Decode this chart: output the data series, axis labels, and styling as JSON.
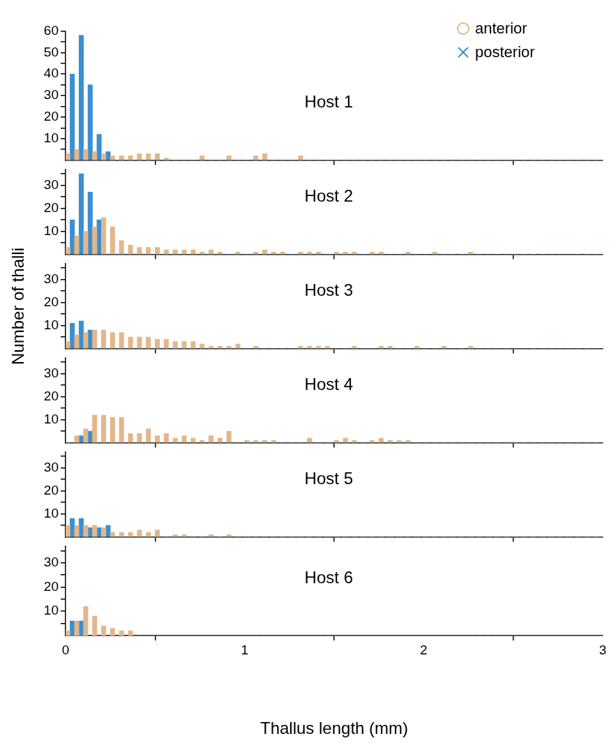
{
  "chart_data": [
    {
      "type": "histogram",
      "title": "Host 1",
      "legend": "top right",
      "tick_labels": "y",
      "xlim": [
        0,
        3
      ],
      "xticks": [
        0,
        1,
        2,
        3
      ],
      "ylim": [
        0,
        60
      ],
      "yticks": [
        {
          "value": 5,
          "label": null
        },
        10,
        {
          "value": 15,
          "label": null
        },
        20,
        {
          "value": 25,
          "label": null
        },
        30,
        {
          "value": 35,
          "label": null
        },
        40,
        {
          "value": 45,
          "label": null
        },
        50,
        {
          "value": 55,
          "label": null
        },
        60
      ],
      "bins": [
        0,
        0.05,
        0.1,
        0.15,
        0.2,
        0.25,
        0.3,
        0.35,
        0.4,
        0.45,
        0.5,
        0.55,
        0.6,
        0.65,
        0.7,
        0.75,
        0.8,
        0.85,
        0.9,
        0.95,
        1,
        1.05,
        1.1,
        1.15,
        1.2,
        1.25,
        1.3,
        1.35,
        1.4,
        1.45,
        1.5,
        1.55,
        1.6,
        1.65,
        1.7,
        1.75,
        1.8,
        1.85,
        1.9,
        1.95,
        2,
        2.05,
        2.1,
        2.15,
        2.2,
        2.25,
        2.3,
        2.35,
        2.4,
        2.45,
        2.5,
        2.55,
        2.6,
        2.65,
        2.7,
        2.75,
        2.8,
        2.85,
        2.9,
        2.95,
        3
      ],
      "series": [
        {
          "name": "anterior",
          "color": "#e3b78a",
          "marker": "circle",
          "values": [
            3,
            5,
            5,
            4,
            3,
            2,
            2,
            2,
            3,
            3,
            3,
            1,
            0,
            0,
            0,
            2,
            0,
            0,
            2,
            0,
            0,
            2,
            3,
            0,
            0,
            0,
            2,
            0,
            0,
            0,
            0,
            0,
            0,
            0,
            0,
            0,
            0,
            0,
            0,
            0,
            0,
            0,
            0,
            0,
            0,
            0,
            0,
            0,
            0,
            0,
            0,
            0,
            0,
            0,
            0,
            0,
            0,
            0,
            0,
            0
          ]
        },
        {
          "name": "posterior",
          "color": "#3a8fd3",
          "marker": "cross",
          "values": [
            40,
            58,
            35,
            12,
            4,
            0,
            0,
            0,
            0,
            0,
            0,
            0,
            0,
            0,
            0,
            0,
            0,
            0,
            0,
            0,
            0,
            0,
            0,
            0,
            0,
            0,
            0,
            0,
            0,
            0,
            0,
            0,
            0,
            0,
            0,
            0,
            0,
            0,
            0,
            0,
            0,
            0,
            0,
            0,
            0,
            0,
            0,
            0,
            0,
            0,
            0,
            0,
            0,
            0,
            0,
            0,
            0,
            0,
            0,
            0
          ]
        }
      ]
    },
    {
      "type": "histogram",
      "title": "Host 2",
      "tick_labels": "y",
      "xlim": [
        0,
        3
      ],
      "xticks": [
        0,
        1,
        2,
        3
      ],
      "ylim": [
        0,
        37
      ],
      "yticks": [
        {
          "value": 5,
          "label": null
        },
        10,
        {
          "value": 15,
          "label": null
        },
        20,
        {
          "value": 25,
          "label": null
        },
        30,
        {
          "value": 35,
          "label": null
        }
      ],
      "bins": [
        0,
        0.05,
        0.1,
        0.15,
        0.2,
        0.25,
        0.3,
        0.35,
        0.4,
        0.45,
        0.5,
        0.55,
        0.6,
        0.65,
        0.7,
        0.75,
        0.8,
        0.85,
        0.9,
        0.95,
        1,
        1.05,
        1.1,
        1.15,
        1.2,
        1.25,
        1.3,
        1.35,
        1.4,
        1.45,
        1.5,
        1.55,
        1.6,
        1.65,
        1.7,
        1.75,
        1.8,
        1.85,
        1.9,
        1.95,
        2,
        2.05,
        2.1,
        2.15,
        2.2,
        2.25,
        2.3,
        2.35,
        2.4,
        2.45,
        2.5,
        2.55,
        2.6,
        2.65,
        2.7,
        2.75,
        2.8,
        2.85,
        2.9,
        2.95,
        3
      ],
      "series": [
        {
          "color": "#e3b78a",
          "values": [
            3,
            8,
            10,
            12,
            16,
            12,
            6,
            4,
            3,
            3,
            3,
            2,
            2,
            2,
            2,
            1,
            2,
            1,
            0,
            1,
            0,
            1,
            2,
            1,
            1,
            0,
            1,
            1,
            1,
            0,
            1,
            1,
            1,
            0,
            1,
            1,
            0,
            0,
            1,
            0,
            0,
            1,
            0,
            0,
            0,
            1,
            0,
            0,
            0,
            0,
            0,
            0,
            0,
            0,
            0,
            0,
            0,
            0,
            0,
            0
          ]
        },
        {
          "color": "#3a8fd3",
          "values": [
            15,
            35,
            27,
            15,
            0,
            0,
            0,
            0,
            0,
            0,
            0,
            0,
            0,
            0,
            0,
            0,
            0,
            0,
            0,
            0,
            0,
            0,
            0,
            0,
            0,
            0,
            0,
            0,
            0,
            0,
            0,
            0,
            0,
            0,
            0,
            0,
            0,
            0,
            0,
            0,
            0,
            0,
            0,
            0,
            0,
            0,
            0,
            0,
            0,
            0,
            0,
            0,
            0,
            0,
            0,
            0,
            0,
            0,
            0,
            0
          ]
        }
      ]
    },
    {
      "type": "histogram",
      "title": "Host 3",
      "ylabel": "Number of thalli",
      "tick_labels": "y",
      "xlim": [
        0,
        3
      ],
      "xticks": [
        0,
        1,
        2,
        3
      ],
      "ylim": [
        0,
        37
      ],
      "yticks": [
        {
          "value": 5,
          "label": null
        },
        10,
        {
          "value": 15,
          "label": null
        },
        20,
        {
          "value": 25,
          "label": null
        },
        30,
        {
          "value": 35,
          "label": null
        }
      ],
      "bins": [
        0,
        0.05,
        0.1,
        0.15,
        0.2,
        0.25,
        0.3,
        0.35,
        0.4,
        0.45,
        0.5,
        0.55,
        0.6,
        0.65,
        0.7,
        0.75,
        0.8,
        0.85,
        0.9,
        0.95,
        1,
        1.05,
        1.1,
        1.15,
        1.2,
        1.25,
        1.3,
        1.35,
        1.4,
        1.45,
        1.5,
        1.55,
        1.6,
        1.65,
        1.7,
        1.75,
        1.8,
        1.85,
        1.9,
        1.95,
        2,
        2.05,
        2.1,
        2.15,
        2.2,
        2.25,
        2.3,
        2.35,
        2.4,
        2.45,
        2.5,
        2.55,
        2.6,
        2.65,
        2.7,
        2.75,
        2.8,
        2.85,
        2.9,
        2.95,
        3
      ],
      "series": [
        {
          "color": "#e3b78a",
          "values": [
            3,
            6,
            7,
            8,
            8,
            7,
            7,
            5,
            5,
            5,
            4,
            4,
            3,
            3,
            3,
            2,
            1,
            1,
            1,
            2,
            0,
            1,
            0,
            0,
            0,
            0,
            1,
            1,
            1,
            1,
            0,
            0,
            1,
            0,
            0,
            1,
            1,
            0,
            0,
            1,
            0,
            0,
            1,
            0,
            0,
            1,
            0,
            0,
            0,
            0,
            0,
            0,
            0,
            0,
            0,
            0,
            0,
            0,
            0,
            0
          ]
        },
        {
          "color": "#3a8fd3",
          "values": [
            11,
            12,
            8,
            0,
            0,
            0,
            0,
            0,
            0,
            0,
            0,
            0,
            0,
            0,
            0,
            0,
            0,
            0,
            0,
            0,
            0,
            0,
            0,
            0,
            0,
            0,
            0,
            0,
            0,
            0,
            0,
            0,
            0,
            0,
            0,
            0,
            0,
            0,
            0,
            0,
            0,
            0,
            0,
            0,
            0,
            0,
            0,
            0,
            0,
            0,
            0,
            0,
            0,
            0,
            0,
            0,
            0,
            0,
            0,
            0
          ]
        }
      ]
    },
    {
      "type": "histogram",
      "title": "Host 4",
      "tick_labels": "y",
      "xlim": [
        0,
        3
      ],
      "xticks": [
        0,
        1,
        2,
        3
      ],
      "ylim": [
        0,
        37
      ],
      "yticks": [
        {
          "value": 5,
          "label": null
        },
        10,
        {
          "value": 15,
          "label": null
        },
        20,
        {
          "value": 25,
          "label": null
        },
        30,
        {
          "value": 35,
          "label": null
        }
      ],
      "bins": [
        0,
        0.05,
        0.1,
        0.15,
        0.2,
        0.25,
        0.3,
        0.35,
        0.4,
        0.45,
        0.5,
        0.55,
        0.6,
        0.65,
        0.7,
        0.75,
        0.8,
        0.85,
        0.9,
        0.95,
        1,
        1.05,
        1.1,
        1.15,
        1.2,
        1.25,
        1.3,
        1.35,
        1.4,
        1.45,
        1.5,
        1.55,
        1.6,
        1.65,
        1.7,
        1.75,
        1.8,
        1.85,
        1.9,
        1.95,
        2,
        2.05,
        2.1,
        2.15,
        2.2,
        2.25,
        2.3,
        2.35,
        2.4,
        2.45,
        2.5,
        2.55,
        2.6,
        2.65,
        2.7,
        2.75,
        2.8,
        2.85,
        2.9,
        2.95,
        3
      ],
      "series": [
        {
          "color": "#e3b78a",
          "values": [
            0,
            3,
            6,
            12,
            12,
            11,
            11,
            4,
            4,
            6,
            3,
            4,
            2,
            3,
            2,
            1,
            3,
            2,
            5,
            0,
            1,
            1,
            1,
            1,
            0,
            0,
            0,
            2,
            0,
            0,
            1,
            2,
            1,
            0,
            1,
            2,
            1,
            1,
            1,
            0,
            0,
            0,
            0,
            0,
            0,
            0,
            0,
            0,
            0,
            0,
            0,
            0,
            0,
            0,
            0,
            0,
            0,
            0,
            0,
            0
          ]
        },
        {
          "color": "#3a8fd3",
          "values": [
            0,
            3,
            5,
            0,
            0,
            0,
            0,
            0,
            0,
            0,
            0,
            0,
            0,
            0,
            0,
            0,
            0,
            0,
            0,
            0,
            0,
            0,
            0,
            0,
            0,
            0,
            0,
            0,
            0,
            0,
            0,
            0,
            0,
            0,
            0,
            0,
            0,
            0,
            0,
            0,
            0,
            0,
            0,
            0,
            0,
            0,
            0,
            0,
            0,
            0,
            0,
            0,
            0,
            0,
            0,
            0,
            0,
            0,
            0,
            0
          ]
        }
      ]
    },
    {
      "type": "histogram",
      "title": "Host 5",
      "tick_labels": "y",
      "xlim": [
        0,
        3
      ],
      "xticks": [
        0,
        1,
        2,
        3
      ],
      "ylim": [
        0,
        37
      ],
      "yticks": [
        {
          "value": 5,
          "label": null
        },
        10,
        {
          "value": 15,
          "label": null
        },
        20,
        {
          "value": 25,
          "label": null
        },
        30,
        {
          "value": 35,
          "label": null
        }
      ],
      "bins": [
        0,
        0.05,
        0.1,
        0.15,
        0.2,
        0.25,
        0.3,
        0.35,
        0.4,
        0.45,
        0.5,
        0.55,
        0.6,
        0.65,
        0.7,
        0.75,
        0.8,
        0.85,
        0.9,
        0.95,
        1,
        1.05,
        1.1,
        1.15,
        1.2,
        1.25,
        1.3,
        1.35,
        1.4,
        1.45,
        1.5,
        1.55,
        1.6,
        1.65,
        1.7,
        1.75,
        1.8,
        1.85,
        1.9,
        1.95,
        2,
        2.05,
        2.1,
        2.15,
        2.2,
        2.25,
        2.3,
        2.35,
        2.4,
        2.45,
        2.5,
        2.55,
        2.6,
        2.65,
        2.7,
        2.75,
        2.8,
        2.85,
        2.9,
        2.95,
        3
      ],
      "series": [
        {
          "color": "#e3b78a",
          "values": [
            5,
            5,
            5,
            5,
            4,
            2,
            2,
            2,
            3,
            2,
            3,
            0,
            1,
            1,
            0,
            0,
            1,
            0,
            1,
            0,
            0,
            0,
            0,
            0,
            0,
            0,
            0,
            0,
            0,
            0,
            0,
            0,
            0,
            0,
            0,
            0,
            0,
            0,
            0,
            0,
            0,
            0,
            0,
            0,
            0,
            0,
            0,
            0,
            0,
            0,
            0,
            0,
            0,
            0,
            0,
            0,
            0,
            0,
            0,
            0
          ]
        },
        {
          "color": "#3a8fd3",
          "values": [
            8,
            8,
            4,
            4,
            5,
            0,
            0,
            0,
            0,
            0,
            0,
            0,
            0,
            0,
            0,
            0,
            0,
            0,
            0,
            0,
            0,
            0,
            0,
            0,
            0,
            0,
            0,
            0,
            0,
            0,
            0,
            0,
            0,
            0,
            0,
            0,
            0,
            0,
            0,
            0,
            0,
            0,
            0,
            0,
            0,
            0,
            0,
            0,
            0,
            0,
            0,
            0,
            0,
            0,
            0,
            0,
            0,
            0,
            0,
            0
          ]
        }
      ]
    },
    {
      "type": "histogram",
      "title": "Host 6",
      "xlabel": "Thallus length (mm)",
      "xlim": [
        0,
        3
      ],
      "xticks": [
        0,
        1,
        2,
        3
      ],
      "ylim": [
        0,
        37
      ],
      "yticks": [
        {
          "value": 5,
          "label": null
        },
        10,
        {
          "value": 15,
          "label": null
        },
        20,
        {
          "value": 25,
          "label": null
        },
        30,
        {
          "value": 35,
          "label": null
        }
      ],
      "bins": [
        0,
        0.05,
        0.1,
        0.15,
        0.2,
        0.25,
        0.3,
        0.35,
        0.4,
        0.45,
        0.5,
        0.55,
        0.6,
        0.65,
        0.7,
        0.75,
        0.8,
        0.85,
        0.9,
        0.95,
        1,
        1.05,
        1.1,
        1.15,
        1.2,
        1.25,
        1.3,
        1.35,
        1.4,
        1.45,
        1.5,
        1.55,
        1.6,
        1.65,
        1.7,
        1.75,
        1.8,
        1.85,
        1.9,
        1.95,
        2,
        2.05,
        2.1,
        2.15,
        2.2,
        2.25,
        2.3,
        2.35,
        2.4,
        2.45,
        2.5,
        2.55,
        2.6,
        2.65,
        2.7,
        2.75,
        2.8,
        2.85,
        2.9,
        2.95,
        3
      ],
      "series": [
        {
          "color": "#e3b78a",
          "values": [
            2,
            6,
            12,
            8,
            4,
            3,
            2,
            2,
            0,
            0,
            0,
            0,
            0,
            0,
            0,
            0,
            0,
            0,
            0,
            0,
            0,
            0,
            0,
            0,
            0,
            0,
            0,
            0,
            0,
            0,
            0,
            0,
            0,
            0,
            0,
            0,
            0,
            0,
            0,
            0,
            0,
            0,
            0,
            0,
            0,
            0,
            0,
            0,
            0,
            0,
            0,
            0,
            0,
            0,
            0,
            0,
            0,
            0,
            0,
            0
          ]
        },
        {
          "color": "#3a8fd3",
          "values": [
            6,
            6,
            0,
            0,
            0,
            0,
            0,
            0,
            0,
            0,
            0,
            0,
            0,
            0,
            0,
            0,
            0,
            0,
            0,
            0,
            0,
            0,
            0,
            0,
            0,
            0,
            0,
            0,
            0,
            0,
            0,
            0,
            0,
            0,
            0,
            0,
            0,
            0,
            0,
            0,
            0,
            0,
            0,
            0,
            0,
            0,
            0,
            0,
            0,
            0,
            0,
            0,
            0,
            0,
            0,
            0,
            0,
            0,
            0,
            0
          ]
        }
      ]
    }
  ]
}
